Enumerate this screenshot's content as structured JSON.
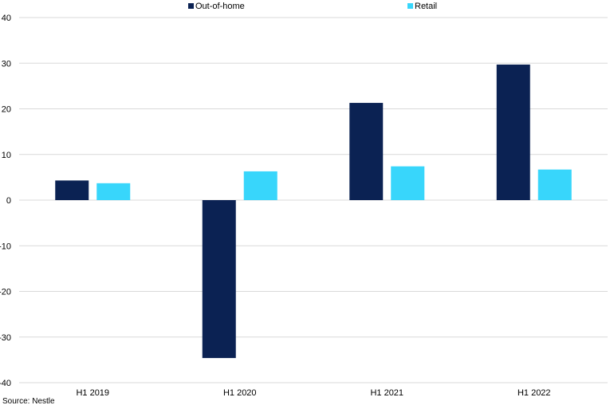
{
  "chart_data": {
    "type": "bar",
    "categories": [
      "H1 2019",
      "H1 2020",
      "H1 2021",
      "H1 2022"
    ],
    "series": [
      {
        "name": "Out-of-home",
        "values": [
          4.3,
          -34.6,
          21.3,
          29.7
        ],
        "color": "#0b2253"
      },
      {
        "name": "Retail",
        "values": [
          3.7,
          6.3,
          7.4,
          6.7
        ],
        "color": "#38d6fb"
      }
    ],
    "ylim": [
      -40,
      40
    ],
    "yticks": [
      40,
      30,
      20,
      10,
      0,
      -10,
      -20,
      -30,
      -40
    ],
    "grid": true,
    "legend": "top-center"
  },
  "footer": {
    "source": "Source: Nestle"
  }
}
